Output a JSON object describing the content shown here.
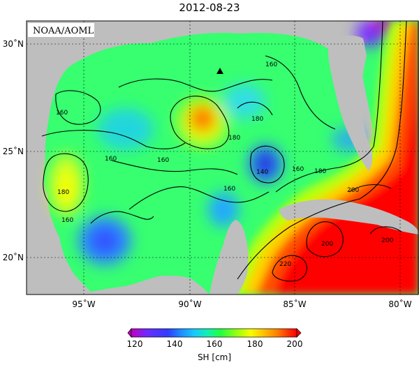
{
  "title": "2012-08-23",
  "source_label": "NOAA/AOML",
  "axes": {
    "x_ticks": [
      "95˚W",
      "90˚W",
      "85˚W",
      "80˚W"
    ],
    "y_ticks": [
      "30˚N",
      "25˚N",
      "20˚N"
    ]
  },
  "contour_labels": [
    "160",
    "160",
    "160",
    "160",
    "160",
    "180",
    "180",
    "140",
    "160",
    "180",
    "200",
    "200",
    "200",
    "220",
    "160",
    "180"
  ],
  "colorbar": {
    "label": "SH [cm]",
    "ticks": [
      "120",
      "140",
      "160",
      "180",
      "200"
    ],
    "colors": [
      "#c000c0",
      "#6a2cff",
      "#2f3cff",
      "#1d8cff",
      "#18c8ff",
      "#10f0b0",
      "#20ff40",
      "#9aff10",
      "#f5ff00",
      "#ffc000",
      "#ff8000",
      "#ff3000",
      "#ff0000"
    ]
  },
  "colors": {
    "land": "#bebebe",
    "sea_base": "#37ff70",
    "contour": "#000000"
  },
  "marker": "triangle-marker"
}
